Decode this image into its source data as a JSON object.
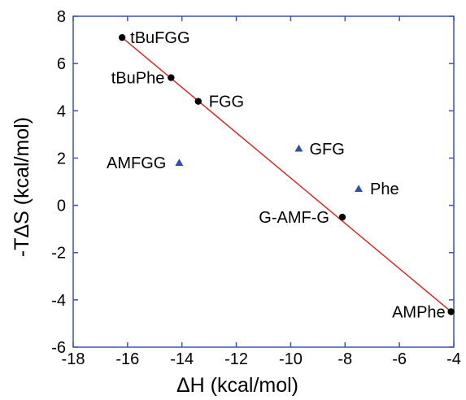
{
  "chart_data": {
    "type": "scatter",
    "xlabel": "ΔH (kcal/mol)",
    "ylabel": "-TΔS (kcal/mol)",
    "xlim": [
      -18,
      -4
    ],
    "ylim": [
      -6,
      8
    ],
    "xticks": [
      -18,
      -16,
      -14,
      -12,
      -10,
      -8,
      -6,
      -4
    ],
    "yticks": [
      -6,
      -4,
      -2,
      0,
      2,
      4,
      6,
      8
    ],
    "grid": false,
    "colors": {
      "circle": "#000000",
      "triangle": "#2f4fa8",
      "line": "#d42a2a",
      "frame": "#3a56b0"
    },
    "series": [
      {
        "marker": "circle",
        "points": [
          {
            "label": "tBuFGG",
            "x": -16.2,
            "y": 7.1
          },
          {
            "label": "tBuPhe",
            "x": -14.4,
            "y": 5.4
          },
          {
            "label": "FGG",
            "x": -13.4,
            "y": 4.4
          },
          {
            "label": "G-AMF-G",
            "x": -8.1,
            "y": -0.5
          },
          {
            "label": "AMPhe",
            "x": -4.1,
            "y": -4.5
          }
        ]
      },
      {
        "marker": "triangle",
        "points": [
          {
            "label": "AMFGG",
            "x": -14.1,
            "y": 1.8
          },
          {
            "label": "GFG",
            "x": -9.7,
            "y": 2.4
          },
          {
            "label": "Phe",
            "x": -7.5,
            "y": 0.7
          }
        ]
      }
    ],
    "fit_line": {
      "x": [
        -16.2,
        -4.1
      ],
      "y": [
        7.1,
        -4.5
      ]
    }
  }
}
